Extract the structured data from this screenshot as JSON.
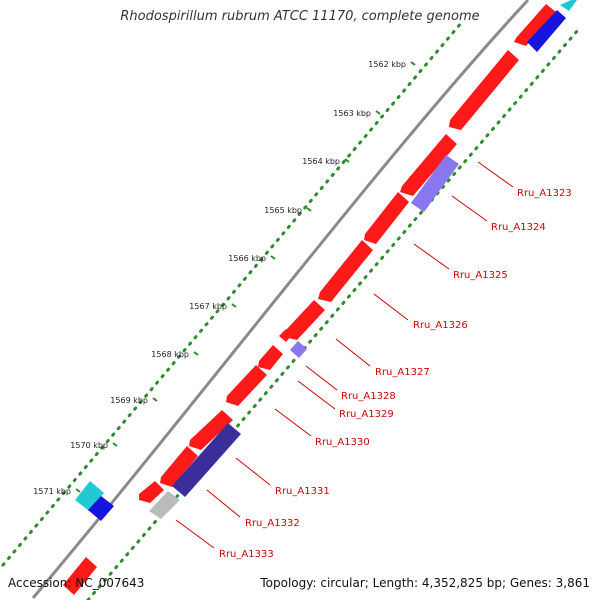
{
  "title": "Rhodospirillum rubrum ATCC 11170, complete genome",
  "footer": {
    "accession": "Accession: NC_007643",
    "summary": "Topology: circular; Length: 4,352,825 bp; Genes: 3,861"
  },
  "ruler": {
    "tick_labels": [
      "1562 kbp",
      "1563 kbp",
      "1564 kbp",
      "1565 kbp",
      "1566 kbp",
      "1567 kbp",
      "1568 kbp",
      "1569 kbp",
      "1570 kbp",
      "1571 kbp"
    ]
  },
  "genes": [
    {
      "label": "Rru_A1323"
    },
    {
      "label": "Rru_A1324"
    },
    {
      "label": "Rru_A1325"
    },
    {
      "label": "Rru_A1326"
    },
    {
      "label": "Rru_A1327"
    },
    {
      "label": "Rru_A1328"
    },
    {
      "label": "Rru_A1329"
    },
    {
      "label": "Rru_A1330"
    },
    {
      "label": "Rru_A1331"
    },
    {
      "label": "Rru_A1332"
    },
    {
      "label": "Rru_A1333"
    }
  ],
  "colors": {
    "cds": "#ff1a1a",
    "backbone": "#8a8a8a",
    "gc_skew": "#2e8b2e",
    "gene_label": "#d40000",
    "blast_dark": "#3a2f9a",
    "blast_light": "#8877ee",
    "blast_grey": "#bbbbbb",
    "cyan_feature": "#22c8d2",
    "blue_feature": "#1515dd"
  }
}
